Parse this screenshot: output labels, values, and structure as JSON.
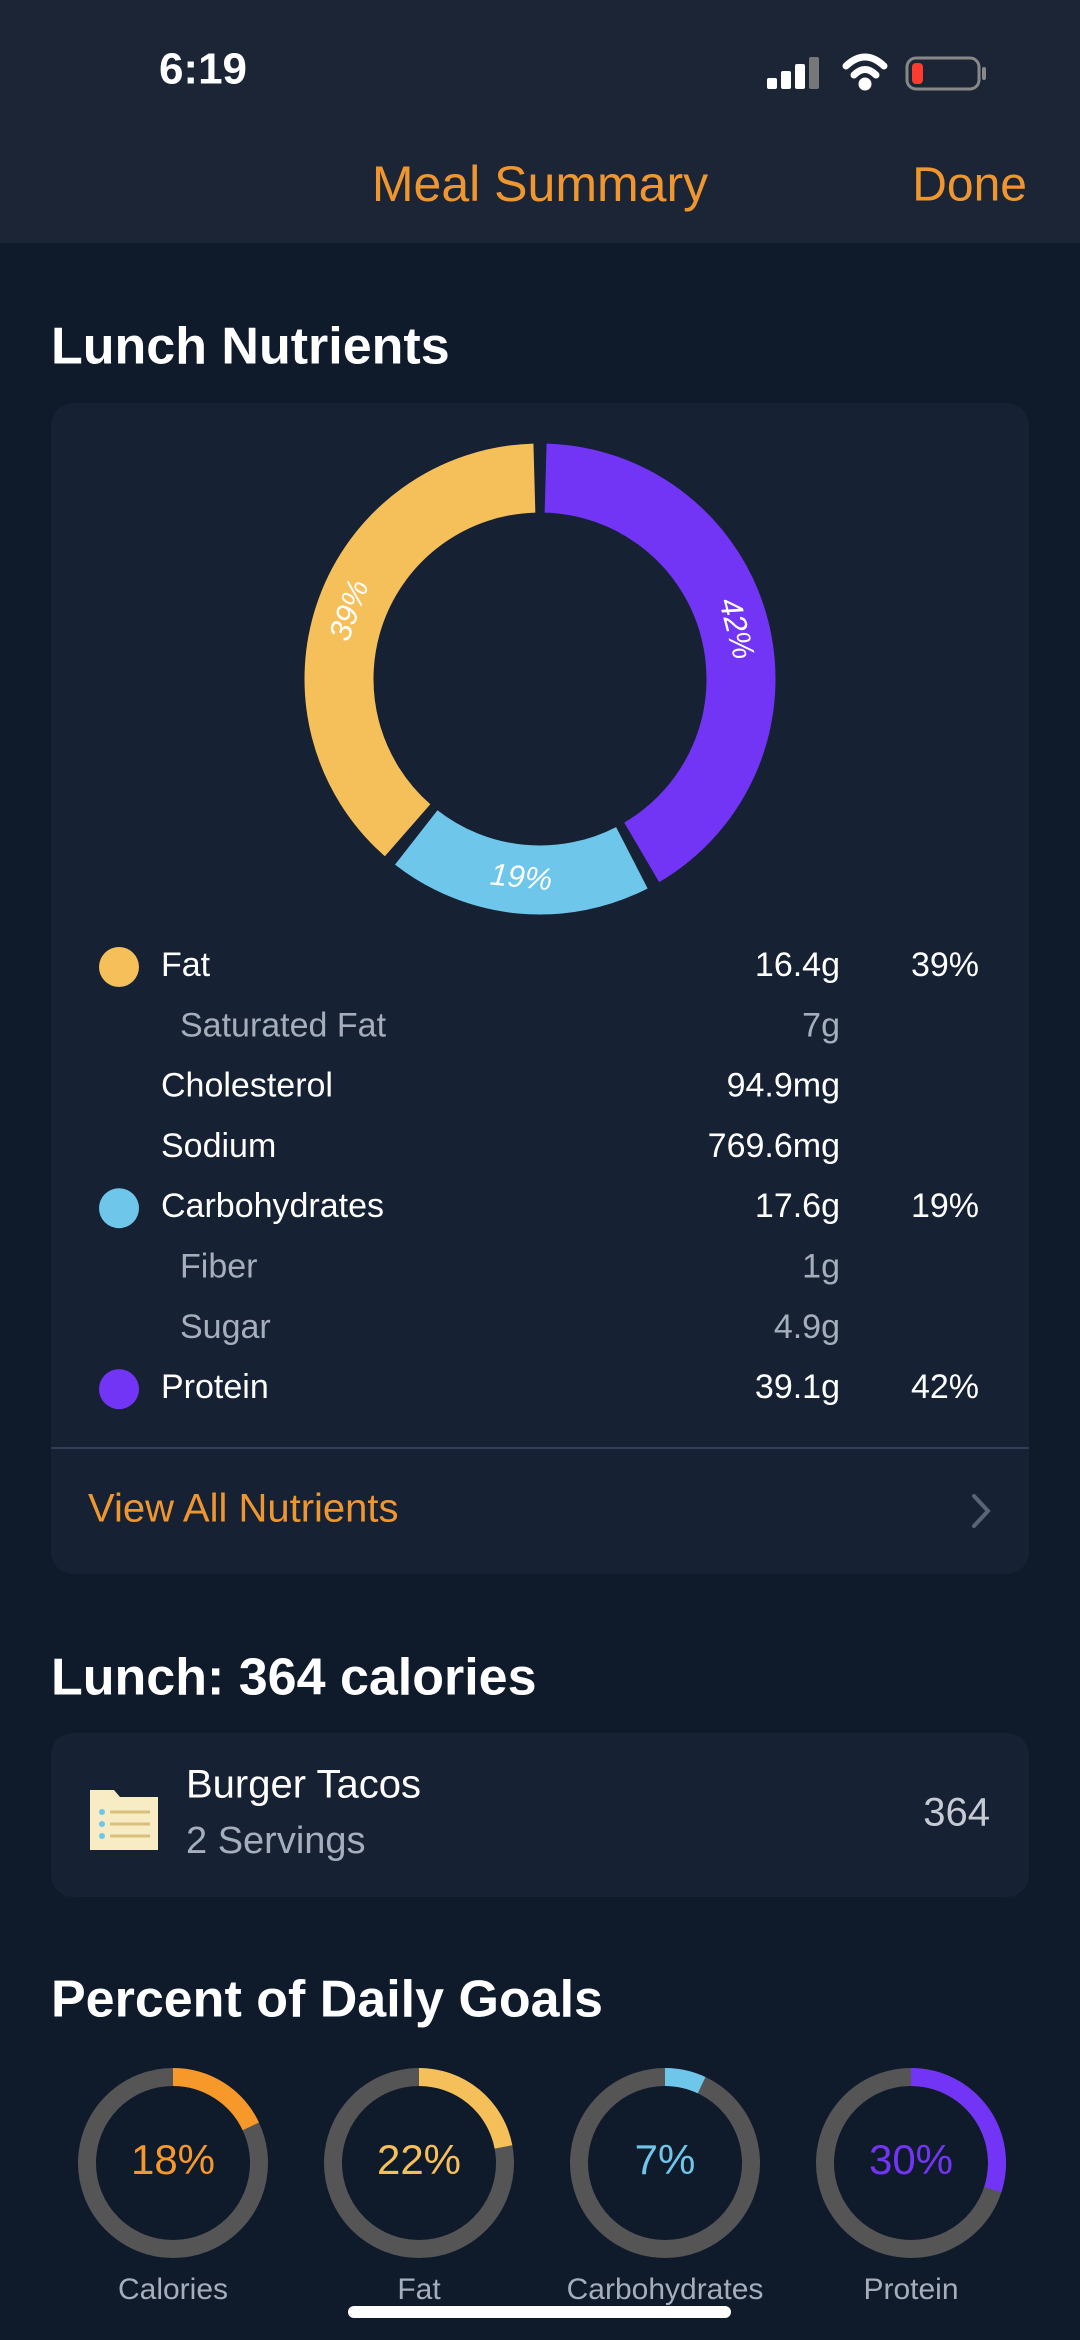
{
  "status": {
    "time": "6:19"
  },
  "header": {
    "title": "Meal Summary",
    "action": "Done"
  },
  "nutrients": {
    "title": "Lunch Nutrients",
    "chart": {
      "type": "donut",
      "categories": [
        "Fat",
        "Carbohydrates",
        "Protein"
      ],
      "values": [
        39,
        19,
        42
      ],
      "value_labels": [
        "39%",
        "19%",
        "42%"
      ],
      "colors": [
        "#f5c05a",
        "#6ec6ea",
        "#7335f5"
      ]
    },
    "rows": [
      {
        "name": "Fat",
        "amount": "16.4g",
        "percent": "39%",
        "color": "#f5c05a",
        "sub": [
          {
            "name": "Saturated Fat",
            "amount": "7g"
          }
        ]
      },
      {
        "name": "Cholesterol",
        "amount": "94.9mg"
      },
      {
        "name": "Sodium",
        "amount": "769.6mg"
      },
      {
        "name": "Carbohydrates",
        "amount": "17.6g",
        "percent": "19%",
        "color": "#6ec6ea",
        "sub": [
          {
            "name": "Fiber",
            "amount": "1g"
          },
          {
            "name": "Sugar",
            "amount": "4.9g"
          }
        ]
      },
      {
        "name": "Protein",
        "amount": "39.1g",
        "percent": "42%",
        "color": "#7335f5"
      }
    ],
    "link": "View All Nutrients"
  },
  "meal": {
    "title": "Lunch: 364 calories",
    "items": [
      {
        "name": "Burger Tacos",
        "servings": "2 Servings",
        "calories": "364"
      }
    ]
  },
  "goals": {
    "title": "Percent of Daily Goals",
    "items": [
      {
        "name": "Calories",
        "value": 18,
        "label": "18%",
        "color": "#f7982a"
      },
      {
        "name": "Fat",
        "value": 22,
        "label": "22%",
        "color": "#f5c05a"
      },
      {
        "name": "Carbohydrates",
        "value": 7,
        "label": "7%",
        "color": "#6ec6ea"
      },
      {
        "name": "Protein",
        "value": 30,
        "label": "30%",
        "color": "#7335f5"
      }
    ]
  }
}
